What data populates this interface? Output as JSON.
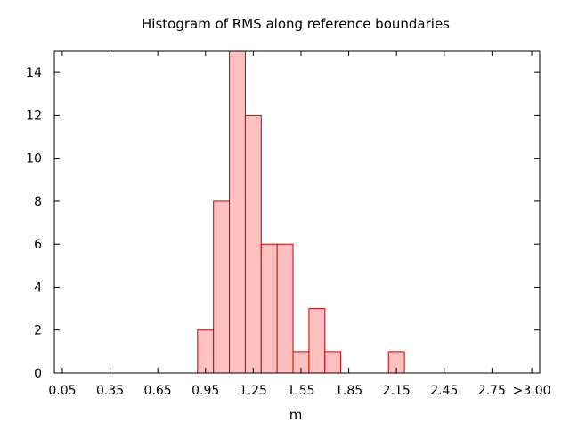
{
  "chart_data": {
    "type": "bar",
    "title": "Histogram of RMS along reference boundaries",
    "xlabel": "m",
    "ylabel": "",
    "xlim": [
      0.0,
      3.05
    ],
    "ylim": [
      0,
      15
    ],
    "x_ticks": [
      {
        "value": 0.05,
        "label": "0.05"
      },
      {
        "value": 0.35,
        "label": "0.35"
      },
      {
        "value": 0.65,
        "label": "0.65"
      },
      {
        "value": 0.95,
        "label": "0.95"
      },
      {
        "value": 1.25,
        "label": "1.25"
      },
      {
        "value": 1.55,
        "label": "1.55"
      },
      {
        "value": 1.85,
        "label": "1.85"
      },
      {
        "value": 2.15,
        "label": "2.15"
      },
      {
        "value": 2.45,
        "label": "2.45"
      },
      {
        "value": 2.75,
        "label": "2.75"
      },
      {
        "value": 3.0,
        "label": ">3.00"
      }
    ],
    "y_ticks": [
      0,
      2,
      4,
      6,
      8,
      10,
      12,
      14
    ],
    "bin_width": 0.1,
    "bins": [
      {
        "center": 0.95,
        "count": 2
      },
      {
        "center": 1.05,
        "count": 8
      },
      {
        "center": 1.15,
        "count": 15
      },
      {
        "center": 1.25,
        "count": 12
      },
      {
        "center": 1.35,
        "count": 6
      },
      {
        "center": 1.45,
        "count": 6
      },
      {
        "center": 1.55,
        "count": 1
      },
      {
        "center": 1.65,
        "count": 3
      },
      {
        "center": 1.75,
        "count": 1
      },
      {
        "center": 2.15,
        "count": 1
      }
    ],
    "grid": false,
    "legend": "none",
    "bar_fill": "#ffc0c0",
    "bar_stroke": "#cc0000"
  }
}
